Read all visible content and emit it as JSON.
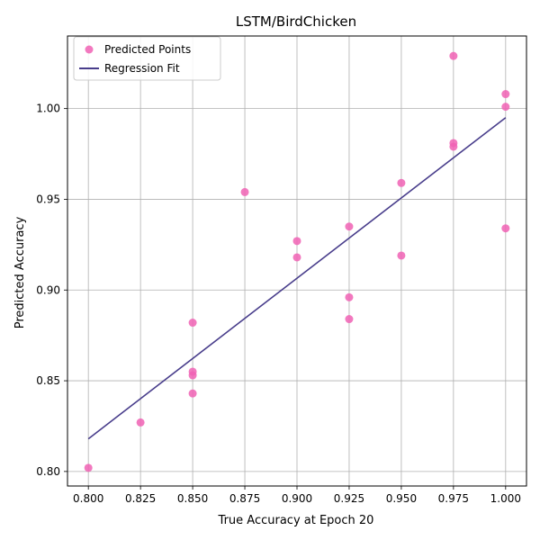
{
  "chart_data": {
    "type": "scatter",
    "title": "LSTM/BirdChicken",
    "xlabel": "True Accuracy at Epoch 20",
    "ylabel": "Predicted Accuracy",
    "xlim": [
      0.79,
      1.01
    ],
    "ylim": [
      0.792,
      1.04
    ],
    "xticks": [
      0.8,
      0.825,
      0.85,
      0.875,
      0.9,
      0.925,
      0.95,
      0.975,
      1.0
    ],
    "xtick_labels": [
      "0.800",
      "0.825",
      "0.850",
      "0.875",
      "0.900",
      "0.925",
      "0.950",
      "0.975",
      "1.000"
    ],
    "yticks": [
      0.8,
      0.85,
      0.9,
      0.95,
      1.0
    ],
    "ytick_labels": [
      "0.80",
      "0.85",
      "0.90",
      "0.95",
      "1.00"
    ],
    "grid": true,
    "legend_position": "upper-left",
    "series": [
      {
        "name": "Predicted Points",
        "kind": "scatter",
        "color": "#f062b4",
        "x": [
          0.8,
          0.825,
          0.85,
          0.85,
          0.85,
          0.85,
          0.875,
          0.9,
          0.9,
          0.925,
          0.925,
          0.925,
          0.95,
          0.95,
          0.975,
          0.975,
          0.975,
          1.0,
          1.0,
          1.0
        ],
        "y": [
          0.802,
          0.827,
          0.843,
          0.853,
          0.855,
          0.882,
          0.954,
          0.918,
          0.927,
          0.884,
          0.896,
          0.935,
          0.919,
          0.959,
          0.979,
          0.981,
          1.029,
          0.934,
          1.001,
          1.008
        ]
      },
      {
        "name": "Regression Fit",
        "kind": "line",
        "color": "#483d8b",
        "x": [
          0.8,
          1.0
        ],
        "y": [
          0.818,
          0.995
        ]
      }
    ]
  }
}
